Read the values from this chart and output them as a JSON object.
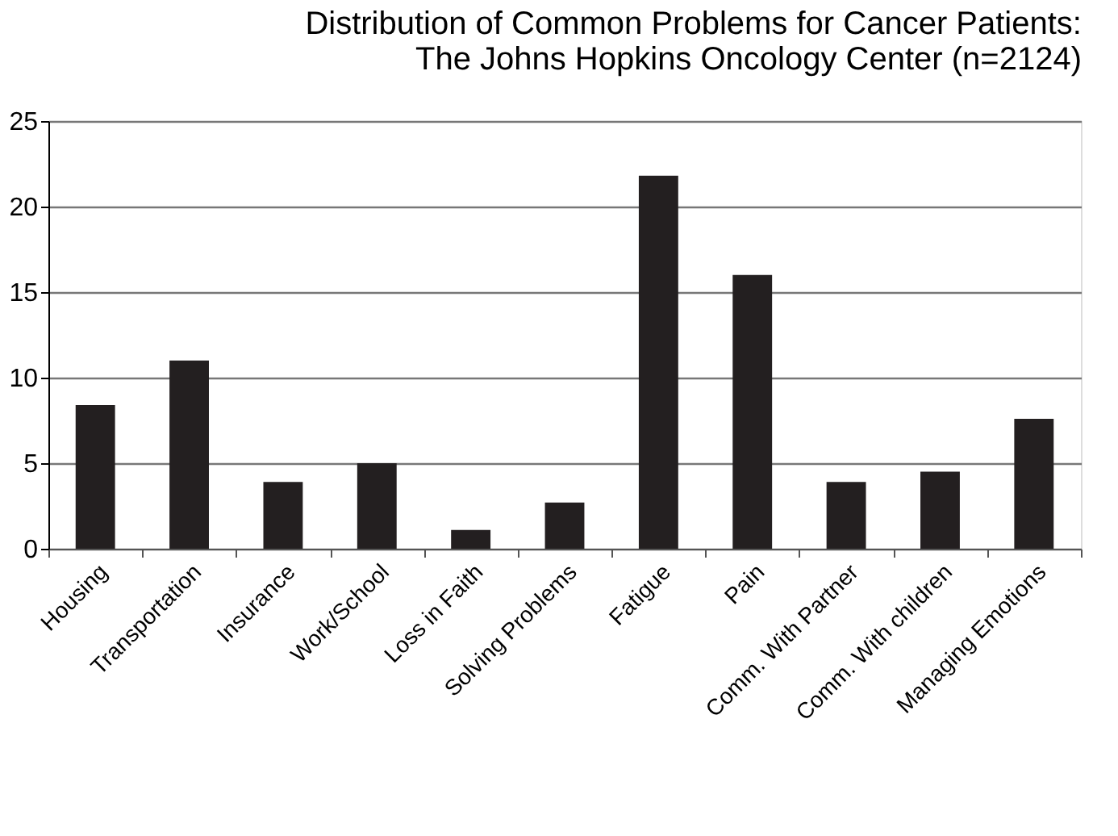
{
  "chart_data": {
    "type": "bar",
    "title": [
      "Distribution of Common Problems for Cancer Patients:",
      "The Johns Hopkins Oncology Center (n=2124)"
    ],
    "categories": [
      "Housing",
      "Transportation",
      "Insurance",
      "Work/School",
      "Loss in Faith",
      "Solving Problems",
      "Fatigue",
      "Pain",
      "Comm. With Partner",
      "Comm. With children",
      "Managing Emotions"
    ],
    "values": [
      8.4,
      11.0,
      3.9,
      5.0,
      1.1,
      2.7,
      21.8,
      16.0,
      3.9,
      4.5,
      7.6
    ],
    "color": "#231f20",
    "ylim": [
      0,
      25
    ],
    "yticks": [
      0,
      5,
      10,
      15,
      20,
      25
    ],
    "grid": "y"
  }
}
